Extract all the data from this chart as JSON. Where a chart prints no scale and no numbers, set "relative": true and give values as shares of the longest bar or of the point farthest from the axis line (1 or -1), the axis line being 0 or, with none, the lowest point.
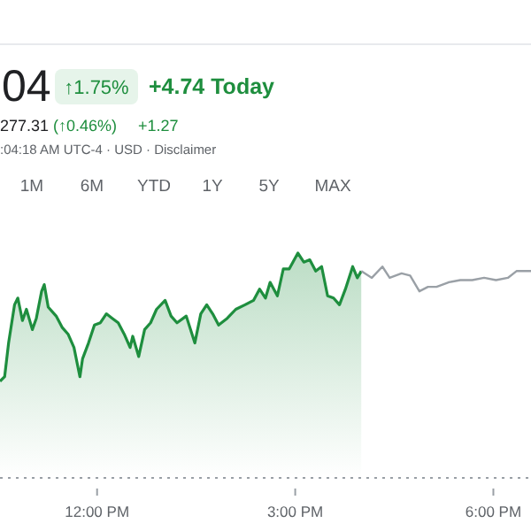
{
  "chart_data": {
    "type": "area",
    "relative": true,
    "annotations": [
      "04",
      "↑1.75%",
      "+4.74 Today",
      "277.31",
      "(↑0.46%)",
      "+1.27",
      ":04:18 AM UTC-4 · USD · Disclaimer",
      "1M",
      "6M",
      "YTD",
      "1Y",
      "5Y",
      "MAX"
    ],
    "xlim": [
      10.53,
      18.57
    ],
    "xticks": [
      {
        "value": 12,
        "label": "12:00 PM"
      },
      {
        "value": 15,
        "label": "3:00 PM"
      },
      {
        "value": 18,
        "label": "6:00 PM"
      }
    ],
    "series": [
      {
        "color": "#1e8e3e",
        "x": [
          10.53,
          10.6,
          10.66,
          10.75,
          10.8,
          10.87,
          10.93,
          11.02,
          11.08,
          11.16,
          11.2,
          11.26,
          11.38,
          11.47,
          11.56,
          11.65,
          11.74,
          11.78,
          11.87,
          11.96,
          12.05,
          12.14,
          12.23,
          12.32,
          12.41,
          12.5,
          12.54,
          12.63,
          12.72,
          12.81,
          12.9,
          13.03,
          13.12,
          13.21,
          13.35,
          13.48,
          13.57,
          13.66,
          13.75,
          13.84,
          13.97,
          14.1,
          14.24,
          14.37,
          14.46,
          14.55,
          14.62,
          14.73,
          14.82,
          14.91,
          15.04,
          15.13,
          15.22,
          15.31,
          15.4,
          15.49,
          15.58,
          15.67,
          15.76,
          15.87,
          15.94,
          16.0
        ],
        "values": [
          0.43,
          0.45,
          0.6,
          0.77,
          0.8,
          0.7,
          0.75,
          0.66,
          0.71,
          0.83,
          0.86,
          0.76,
          0.72,
          0.67,
          0.64,
          0.58,
          0.45,
          0.53,
          0.6,
          0.68,
          0.69,
          0.73,
          0.71,
          0.69,
          0.64,
          0.58,
          0.63,
          0.54,
          0.66,
          0.69,
          0.75,
          0.79,
          0.72,
          0.69,
          0.72,
          0.6,
          0.73,
          0.77,
          0.73,
          0.68,
          0.71,
          0.75,
          0.77,
          0.79,
          0.84,
          0.8,
          0.87,
          0.81,
          0.93,
          0.93,
          1.0,
          0.96,
          0.97,
          0.92,
          0.94,
          0.81,
          0.8,
          0.77,
          0.84,
          0.94,
          0.89,
          0.92
        ]
      },
      {
        "type": "line",
        "color": "#9aa0a6",
        "x": [
          16.0,
          16.16,
          16.32,
          16.43,
          16.61,
          16.74,
          16.88,
          17.01,
          17.14,
          17.32,
          17.5,
          17.68,
          17.86,
          18.04,
          18.22,
          18.35,
          18.57
        ],
        "values": [
          0.92,
          0.89,
          0.94,
          0.89,
          0.91,
          0.9,
          0.83,
          0.85,
          0.85,
          0.87,
          0.88,
          0.88,
          0.89,
          0.88,
          0.89,
          0.92,
          0.92
        ]
      }
    ]
  }
}
